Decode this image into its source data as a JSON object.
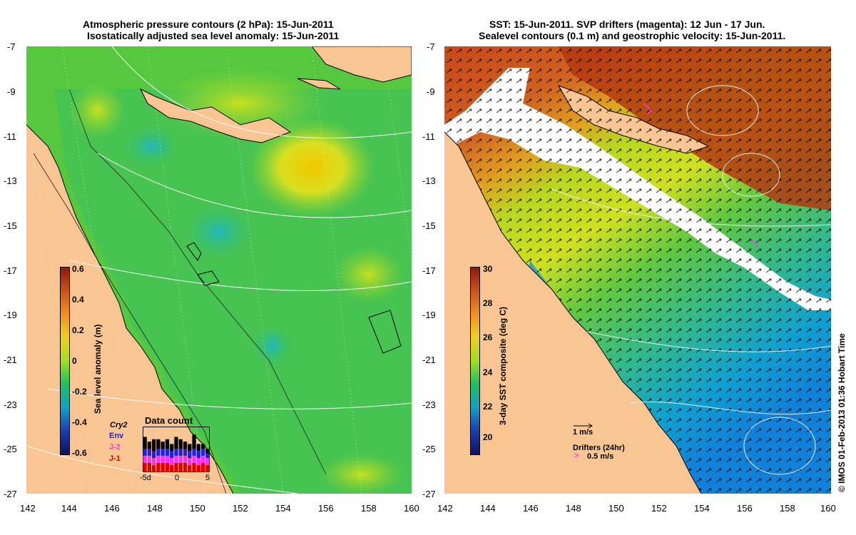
{
  "left_panel": {
    "title_line1": "Atmospheric pressure contours (2 hPa): 15-Jun-2011",
    "title_line2": "Isostatically adjusted sea level anomaly: 15-Jun-2011",
    "y_ticks": [
      "-7",
      "-9",
      "-11",
      "-13",
      "-15",
      "-17",
      "-19",
      "-21",
      "-23",
      "-25",
      "-27"
    ],
    "x_ticks": [
      "142",
      "144",
      "146",
      "148",
      "150",
      "152",
      "154",
      "156",
      "158",
      "160"
    ],
    "colorbar": {
      "label": "Sea level anomaly (m)",
      "ticks": [
        "0.6",
        "0.4",
        "0.2",
        "0",
        "-0.2",
        "-0.4",
        "-0.6"
      ]
    },
    "data_count": {
      "title": "Data count",
      "legend": [
        {
          "label": "Cry2",
          "color": "#000000"
        },
        {
          "label": "Env",
          "color": "#2020e0"
        },
        {
          "label": "J-2",
          "color": "#ff30ff"
        },
        {
          "label": "J-1",
          "color": "#e00000"
        }
      ],
      "x_ticks": [
        "-5d",
        "0",
        "5"
      ],
      "bars": [
        [
          4,
          3,
          3,
          5
        ],
        [
          4,
          3,
          3,
          3
        ],
        [
          3,
          3,
          3,
          5
        ],
        [
          4,
          3,
          3,
          4
        ],
        [
          4,
          3,
          3,
          3
        ],
        [
          4,
          3,
          3,
          4
        ],
        [
          3,
          3,
          3,
          3
        ],
        [
          4,
          3,
          3,
          5
        ],
        [
          4,
          3,
          3,
          4
        ],
        [
          4,
          3,
          3,
          3
        ],
        [
          3,
          3,
          3,
          3
        ],
        [
          4,
          3,
          3,
          6
        ],
        [
          3,
          3,
          3,
          3
        ],
        [
          4,
          3,
          3,
          2
        ],
        [
          3,
          3,
          2,
          2
        ]
      ]
    }
  },
  "right_panel": {
    "title_line1": "SST: 15-Jun-2011. SVP drifters (magenta): 12 Jun - 17 Jun.",
    "title_line2": "Sealevel contours (0.1 m) and geostrophic velocity: 15-Jun-2011.",
    "y_ticks": [
      "-7",
      "-9",
      "-11",
      "-13",
      "-15",
      "-17",
      "-19",
      "-21",
      "-23",
      "-25",
      "-27"
    ],
    "x_ticks": [
      "142",
      "144",
      "146",
      "148",
      "150",
      "152",
      "154",
      "156",
      "158",
      "160"
    ],
    "colorbar": {
      "label": "3-day SST composite (deg C)",
      "ticks": [
        "30",
        "28",
        "26",
        "24",
        "22",
        "20"
      ]
    },
    "velocity_scale": "1 m/s",
    "drifters_label": "Drifters (24hr)",
    "drifter_scale": "0.5 m/s"
  },
  "credit": "© IMOS 01-Feb-2013 01:36 Hobart Time"
}
